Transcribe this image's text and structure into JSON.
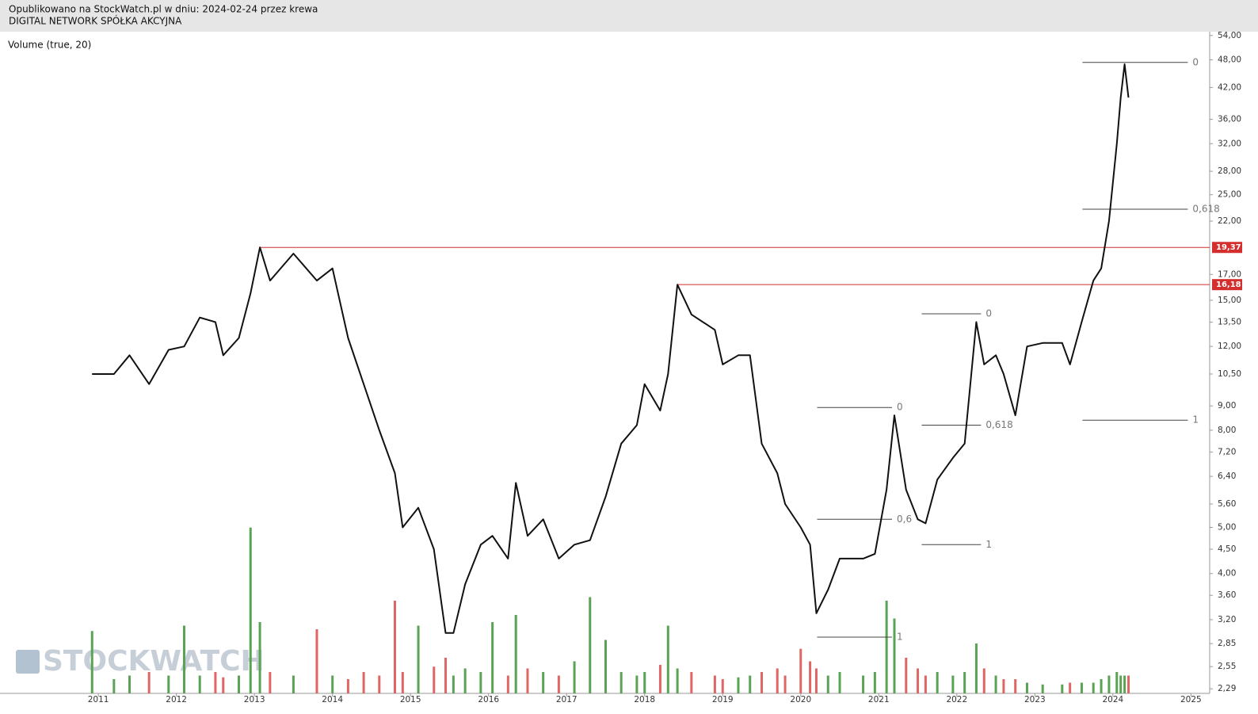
{
  "header": {
    "published": "Opublikowano na StockWatch.pl w dniu: 2024-02-24 przez krewa",
    "company": "DIGITAL NETWORK SPÓŁKA AKCYJNA"
  },
  "chart_data": {
    "type": "line",
    "indicator_label": "Volume (true, 20)",
    "watermark": "STOCKWATCH",
    "log_y": true,
    "xlim": [
      2009.74,
      2025.24
    ],
    "xticks": [
      2011,
      2012,
      2013,
      2014,
      2015,
      2016,
      2017,
      2018,
      2019,
      2020,
      2021,
      2022,
      2023,
      2024,
      2025
    ],
    "ylim": [
      2.24,
      55.0
    ],
    "yticks": [
      {
        "value": 54,
        "label": "54,00"
      },
      {
        "value": 48,
        "label": "48,00"
      },
      {
        "value": 42,
        "label": "42,00"
      },
      {
        "value": 36,
        "label": "36,00"
      },
      {
        "value": 32,
        "label": "32,00"
      },
      {
        "value": 28,
        "label": "28,00"
      },
      {
        "value": 25,
        "label": "25,00"
      },
      {
        "value": 22,
        "label": "22,00"
      },
      {
        "value": 17,
        "label": "17,00"
      },
      {
        "value": 15,
        "label": "15,00"
      },
      {
        "value": 13.5,
        "label": "13,50"
      },
      {
        "value": 12,
        "label": "12,00"
      },
      {
        "value": 10.5,
        "label": "10,50"
      },
      {
        "value": 9,
        "label": "9,00"
      },
      {
        "value": 8,
        "label": "8,00"
      },
      {
        "value": 7.2,
        "label": "7,20"
      },
      {
        "value": 6.4,
        "label": "6,40"
      },
      {
        "value": 5.6,
        "label": "5,60"
      },
      {
        "value": 5,
        "label": "5,00"
      },
      {
        "value": 4.5,
        "label": "4,50"
      },
      {
        "value": 4,
        "label": "4,00"
      },
      {
        "value": 3.6,
        "label": "3,60"
      },
      {
        "value": 3.2,
        "label": "3,20"
      },
      {
        "value": 2.85,
        "label": "2,85"
      },
      {
        "value": 2.55,
        "label": "2,55"
      },
      {
        "value": 2.29,
        "label": "2,29"
      }
    ],
    "x": [
      2010.92,
      2011.2,
      2011.4,
      2011.65,
      2011.9,
      2012.1,
      2012.3,
      2012.5,
      2012.6,
      2012.8,
      2012.95,
      2013.07,
      2013.2,
      2013.5,
      2013.8,
      2014.0,
      2014.2,
      2014.4,
      2014.6,
      2014.8,
      2014.9,
      2015.1,
      2015.3,
      2015.45,
      2015.55,
      2015.7,
      2015.9,
      2016.05,
      2016.25,
      2016.35,
      2016.5,
      2016.7,
      2016.9,
      2017.1,
      2017.3,
      2017.5,
      2017.7,
      2017.9,
      2018.0,
      2018.2,
      2018.3,
      2018.42,
      2018.6,
      2018.9,
      2019.0,
      2019.2,
      2019.35,
      2019.5,
      2019.7,
      2019.8,
      2020.0,
      2020.12,
      2020.2,
      2020.35,
      2020.5,
      2020.8,
      2020.95,
      2021.1,
      2021.2,
      2021.35,
      2021.5,
      2021.6,
      2021.75,
      2021.95,
      2022.1,
      2022.25,
      2022.35,
      2022.5,
      2022.6,
      2022.75,
      2022.9,
      2023.1,
      2023.35,
      2023.45,
      2023.6,
      2023.75,
      2023.85,
      2023.95,
      2024.05,
      2024.1,
      2024.15,
      2024.2
    ],
    "series": [
      {
        "color": "#111111",
        "values": [
          10.5,
          10.5,
          11.5,
          10.0,
          11.8,
          12.0,
          13.8,
          13.5,
          11.5,
          12.5,
          15.5,
          19.37,
          16.5,
          18.8,
          16.5,
          17.5,
          12.5,
          10.0,
          8.0,
          6.5,
          5.0,
          5.5,
          4.5,
          3.0,
          3.0,
          3.8,
          4.6,
          4.8,
          4.3,
          6.2,
          4.8,
          5.2,
          4.3,
          4.6,
          4.7,
          5.8,
          7.5,
          8.2,
          10.0,
          8.8,
          10.5,
          16.18,
          14.0,
          13.0,
          11.0,
          11.5,
          11.5,
          7.5,
          6.5,
          5.6,
          5.0,
          4.6,
          3.3,
          3.7,
          4.3,
          4.3,
          4.4,
          6.0,
          8.6,
          6.0,
          5.2,
          5.1,
          6.3,
          7.0,
          7.5,
          13.5,
          11.0,
          11.5,
          10.5,
          8.6,
          12.0,
          12.2,
          12.2,
          11.0,
          13.5,
          16.5,
          17.5,
          22.0,
          32.0,
          40.0,
          47.0,
          40.0
        ]
      }
    ],
    "volume": [
      35,
      8,
      10,
      12,
      10,
      38,
      10,
      12,
      9,
      10,
      93,
      40,
      12,
      10,
      36,
      10,
      8,
      12,
      10,
      52,
      12,
      38,
      15,
      20,
      10,
      14,
      12,
      40,
      10,
      44,
      14,
      12,
      10,
      18,
      54,
      30,
      12,
      10,
      12,
      16,
      38,
      14,
      12,
      10,
      8,
      9,
      10,
      12,
      14,
      10,
      25,
      18,
      14,
      10,
      12,
      10,
      12,
      52,
      42,
      20,
      14,
      10,
      12,
      10,
      12,
      28,
      14,
      10,
      8,
      8,
      6,
      5,
      5,
      6,
      6,
      6,
      8,
      10,
      12,
      10,
      10,
      10
    ],
    "volume_lim": [
      0,
      100
    ],
    "volume_up_color": "#5aa354",
    "volume_down_color": "#e06666",
    "price_lines": [
      {
        "value": 19.37,
        "label": "19,37",
        "start": 2013.07,
        "color": "#d32f2f"
      },
      {
        "value": 16.18,
        "label": "16,18",
        "start": 2018.42,
        "color": "#d32f2f"
      }
    ],
    "annotations": [
      {
        "text": "0",
        "price": 47.4,
        "x0": 2023.61,
        "x1": 2024.96
      },
      {
        "text": "0,618",
        "price": 23.3,
        "x0": 2023.61,
        "x1": 2024.96
      },
      {
        "text": "1",
        "price": 8.4,
        "x0": 2023.61,
        "x1": 2024.96
      },
      {
        "text": "0",
        "price": 14.05,
        "x0": 2021.55,
        "x1": 2022.31
      },
      {
        "text": "0,618",
        "price": 8.2,
        "x0": 2021.55,
        "x1": 2022.31
      },
      {
        "text": "1",
        "price": 4.6,
        "x0": 2021.55,
        "x1": 2022.31
      },
      {
        "text": "0",
        "price": 8.93,
        "x0": 2020.21,
        "x1": 2021.17
      },
      {
        "text": "0,6",
        "price": 5.2,
        "x0": 2020.21,
        "x1": 2021.17
      },
      {
        "text": "1",
        "price": 2.94,
        "x0": 2020.21,
        "x1": 2021.17
      }
    ]
  }
}
